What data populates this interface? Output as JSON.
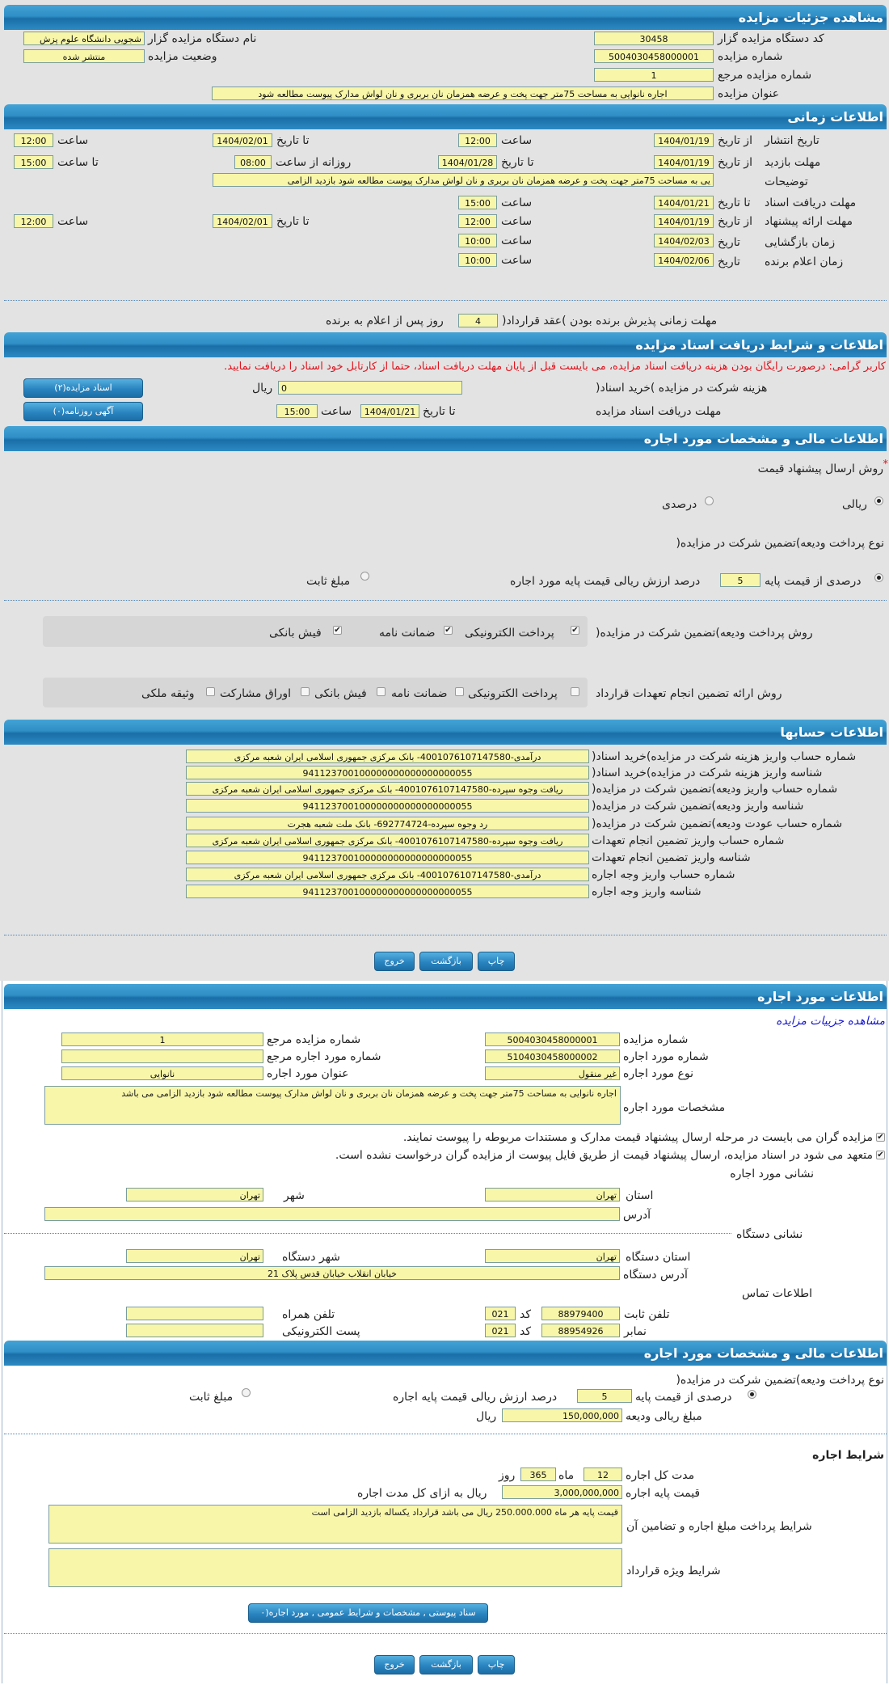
{
  "auction_details": {
    "title": "مشاهده جزئیات مزایده",
    "org_code_label": "کد دستگاه مزایده گزار",
    "org_code": "30458",
    "org_name_label": "نام دستگاه مزایده گزار",
    "org_name": "شجویی دانشگاه علوم پزش",
    "auction_no_label": "شماره مزایده",
    "auction_no": "5004030458000001",
    "status_label": "وضعیت مزایده",
    "status": "منتشر شده",
    "ref_no_label": "شماره مزایده مرجع",
    "ref_no": "1",
    "subject_label": "عنوان مزایده",
    "subject": "اجاره نانوایی به مساحت 75متر جهت پخت و عرضه همزمان نان بربری و نان لواش مدارک پیوست مطالعه شود"
  },
  "time_info": {
    "title": "اطلاعات زمانی",
    "from_date": "از تاریخ",
    "to_date": "تا تاریخ",
    "time": "ساعت",
    "to_time": "تا ساعت",
    "date": "تاریخ",
    "daily_from_time": "روزانه از ساعت",
    "publish": {
      "label": "تاریخ انتشار",
      "from": "1404/01/19",
      "from_time": "12:00",
      "to": "1404/02/01",
      "to_time": "12:00"
    },
    "visit": {
      "label": "مهلت بازدید",
      "from": "1404/01/19",
      "to": "1404/01/28",
      "daily_from": "08:00",
      "daily_to": "15:00"
    },
    "description_label": "توضیحات",
    "description": "یی به مساحت 75متر جهت پخت و عرضه همزمان نان بربری و نان لواش مدارک پیوست مطالعه شود بازدید الزامی",
    "doc_receive": {
      "label": "مهلت دریافت اسناد",
      "to": "1404/01/21",
      "time": "15:00"
    },
    "bid_submit": {
      "label": "مهلت ارائه پیشنهاد",
      "from": "1404/01/19",
      "from_time": "12:00",
      "to": "1404/02/01",
      "to_time": "12:00"
    },
    "opening": {
      "label": "زمان بازگشایی",
      "date": "1404/02/03",
      "time": "10:00"
    },
    "winner": {
      "label": "زمان اعلام برنده",
      "date": "1404/02/06",
      "time": "10:00"
    },
    "acceptance_label": "مهلت زمانی پذیرش برنده بودن )عقد قرارداد(",
    "acceptance_days": "4",
    "acceptance_suffix": "روز پس از اعلام به برنده"
  },
  "documents": {
    "title": "اطلاعات و شرایط دریافت اسناد مزایده",
    "notice": "کاربر گرامی: درصورت رایگان بودن هزینه دریافت اسناد مزایده، می بایست قبل از پایان مهلت دریافت اسناد، حتما از کارتابل خود اسناد را دریافت نمایید.",
    "fee_label": "هزینه شرکت در مزایده )خرید اسناد(",
    "fee": "0",
    "currency": "ریال",
    "deadline_label": "مهلت دریافت اسناد مزایده",
    "to_date_label": "تا تاریخ",
    "deadline_date": "1404/01/21",
    "time_label": "ساعت",
    "deadline_time": "15:00",
    "docs_button": "اسناد مزایده(۲)",
    "ads_button": "آگهی روزنامه(۰)"
  },
  "financial": {
    "title": "اطلاعات مالی و مشخصات مورد اجاره",
    "price_method_label": "روش ارسال پیشنهاد قیمت",
    "required_mark": "*",
    "price_methods": [
      {
        "label": "ریالی",
        "selected": true
      },
      {
        "label": "درصدی",
        "selected": false
      }
    ],
    "deposit_type_label": "نوع پرداخت ودیعه)تضمین شرکت در مزایده(",
    "deposit_percent_label": "درصدی از قیمت پایه",
    "deposit_percent": "5",
    "deposit_percent_desc": "درصد ارزش ریالی قیمت پایه مورد اجاره",
    "deposit_fixed_label": "مبلغ ثابت",
    "deposit_percent_selected": true,
    "deposit_payment_label": "روش پرداخت ودیعه)تضمین شرکت در مزایده(",
    "deposit_payment_options": [
      {
        "label": "پرداخت الکترونیکی",
        "checked": true
      },
      {
        "label": "ضمانت نامه",
        "checked": true
      },
      {
        "label": "فیش بانکی",
        "checked": true
      }
    ],
    "guarantee_label": "روش ارائه تضمین انجام تعهدات قرارداد",
    "guarantee_options": [
      {
        "label": "پرداخت الکترونیکی",
        "checked": false
      },
      {
        "label": "ضمانت نامه",
        "checked": false
      },
      {
        "label": "فیش بانکی",
        "checked": false
      },
      {
        "label": "اوراق مشارکت",
        "checked": false
      },
      {
        "label": "وثیقه ملکی",
        "checked": false
      }
    ]
  },
  "accounts": {
    "title": "اطلاعات حسابها",
    "rows": [
      {
        "label": "شماره حساب واریز هزینه شرکت در مزایده)خرید اسناد(",
        "value": "درآمدی-4001076107147580- بانک مرکزی جمهوری اسلامی ایران شعبه مرکزی"
      },
      {
        "label": "شناسه واریز هزینه شرکت در مزایده)خرید اسناد(",
        "value": "941123700100000000000000000055"
      },
      {
        "label": "شماره حساب واریز ودیعه)تضمین شرکت در مزایده(",
        "value": "ریافت وجوه سپرده-4001076107147580- بانک مرکزی جمهوری اسلامی ایران شعبه مرکزی"
      },
      {
        "label": "شناسه واریز ودیعه)تضمین شرکت در مزایده(",
        "value": "941123700100000000000000000055"
      },
      {
        "label": "شماره حساب عودت ودیعه)تضمین شرکت در مزایده(",
        "value": "رد وجوه سپرده-692774724- بانک ملت شعبه هجرت"
      },
      {
        "label": "شماره حساب واریز تضمین انجام تعهدات",
        "value": "ریافت وجوه سپرده-4001076107147580- بانک مرکزی جمهوری اسلامی ایران شعبه مرکزی"
      },
      {
        "label": "شناسه واریز تضمین انجام تعهدات",
        "value": "941123700100000000000000000055"
      },
      {
        "label": "شماره حساب واریز وجه اجاره",
        "value": "درآمدی-4001076107147580- بانک مرکزی جمهوری اسلامی ایران شعبه مرکزی"
      },
      {
        "label": "شناسه واریز وجه اجاره",
        "value": "941123700100000000000000000055"
      }
    ]
  },
  "actions": {
    "print": "چاپ",
    "back": "بازگشت",
    "exit": "خروج"
  },
  "lease_item": {
    "title": "اطلاعات مورد اجاره",
    "details_link": "مشاهده جزییات مزایده",
    "auction_no_label": "شماره مزایده",
    "auction_no": "5004030458000001",
    "ref_no_label": "شماره مزایده مرجع",
    "ref_no": "1",
    "item_no_label": "شماره مورد اجاره",
    "item_no": "5104030458000002",
    "item_ref_label": "شماره مورد اجاره مرجع",
    "item_ref": "",
    "item_type_label": "نوع مورد اجاره",
    "item_type": "غیر منقول",
    "item_title_label": "عنوان مورد اجاره",
    "item_title": "نانوایی",
    "specs_label": "مشخصات مورد اجاره",
    "specs": "اجاره نانوایی به مساحت 75متر جهت پخت و عرضه همزمان نان بربری و نان لواش مدارک پیوست مطالعه شود بازدید الزامی می باشد",
    "checks": [
      {
        "label": "مزایده گران می بایست در مرحله ارسال پیشنهاد قیمت مدارک و مستندات مربوطه را پیوست نمایند.",
        "checked": true
      },
      {
        "label": "متعهد می شود در اسناد مزایده، ارسال پیشنهاد قیمت از طریق فایل پیوست از مزایده گران درخواست نشده است.",
        "checked": true
      }
    ],
    "address_title": "نشانی مورد اجاره",
    "province_label": "استان",
    "province": "تهران",
    "city_label": "شهر",
    "city": "تهران",
    "address_label": "آدرس",
    "address": "",
    "org_address_title": "نشانی دستگاه",
    "org_province_label": "استان دستگاه",
    "org_province": "تهران",
    "org_city_label": "شهر دستگاه",
    "org_city": "تهران",
    "org_address_label": "آدرس دستگاه",
    "org_address": "خیابان انقلاب خیابان قدس پلاک 21",
    "contact_title": "اطلاعات تماس",
    "code_label": "کد",
    "phone_label": "تلفن ثابت",
    "phone": "88979400",
    "phone_code": "021",
    "fax_label": "نمابر",
    "fax": "88954926",
    "fax_code": "021",
    "mobile_label": "تلفن همراه",
    "mobile": "",
    "email_label": "پست الکترونیکی",
    "email": ""
  },
  "lease_financial": {
    "title": "اطلاعات مالی و مشخصات مورد اجاره",
    "deposit_type_label": "نوع پرداخت ودیعه)تضمین شرکت در مزایده(",
    "deposit_percent_label": "درصدی از قیمت پایه",
    "deposit_percent": "5",
    "deposit_percent_desc": "درصد ارزش ریالی قیمت پایه اجاره",
    "deposit_fixed_label": "مبلغ ثابت",
    "deposit_amount_label": "مبلغ ریالی ودیعه",
    "deposit_amount": "150,000,000",
    "currency": "ریال",
    "terms_title": "شرایط اجاره",
    "duration_label": "مدت کل اجاره",
    "months": "12",
    "months_label": "ماه",
    "days": "365",
    "days_label": "روز",
    "base_price_label": "قیمت پایه اجاره",
    "base_price": "3,000,000,000",
    "base_price_suffix": "ریال به ازای کل مدت اجاره",
    "payment_terms_label": "شرایط پرداخت مبلغ اجاره و تضامین آن",
    "payment_terms": "قیمت پایه هر ماه 250.000.000 ریال می باشد قرارداد یکساله  بازدید الزامی است",
    "special_terms_label": "شرایط ویژه قرارداد",
    "special_terms": "",
    "attachments_button": "سناد پیوستی , مشخصات و شرایط عمومی , مورد اجاره(۰"
  }
}
